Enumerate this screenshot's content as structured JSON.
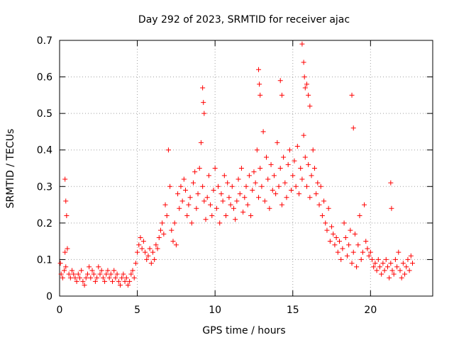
{
  "chart_data": {
    "type": "scatter",
    "title": "Day 292 of 2023, SRMTID for receiver ajac",
    "xlabel": "GPS time / hours",
    "ylabel": "SRMTID / TECUs",
    "xlim": [
      0,
      24
    ],
    "ylim": [
      0,
      0.7
    ],
    "xticks": [
      0,
      5,
      10,
      15,
      20
    ],
    "yticks": [
      0,
      0.1,
      0.2,
      0.3,
      0.4,
      0.5,
      0.6,
      0.7
    ],
    "xtick_labels": [
      "0",
      "5",
      "10",
      "15",
      "20"
    ],
    "ytick_labels": [
      "0",
      "0.1",
      "0.2",
      "0.3",
      "0.4",
      "0.5",
      "0.6",
      "0.7"
    ],
    "grid": true,
    "marker": "+",
    "series_color": "#ff0000",
    "series": [
      {
        "name": "SRMTID",
        "x": [
          0.05,
          0.1,
          0.2,
          0.3,
          0.35,
          0.4,
          0.5,
          0.6,
          0.7,
          0.8,
          0.9,
          1.0,
          1.1,
          1.2,
          1.3,
          1.4,
          1.5,
          1.6,
          1.7,
          1.8,
          1.9,
          2.0,
          2.1,
          2.2,
          2.3,
          2.4,
          2.5,
          2.6,
          2.7,
          2.8,
          2.9,
          3.0,
          3.1,
          3.2,
          3.3,
          3.4,
          3.5,
          3.6,
          3.7,
          3.8,
          3.9,
          4.0,
          4.1,
          4.2,
          4.3,
          4.4,
          4.5,
          4.6,
          4.7,
          4.8,
          4.9,
          5.0,
          5.1,
          5.2,
          5.3,
          5.4,
          5.5,
          5.6,
          5.7,
          5.8,
          5.9,
          6.0,
          6.1,
          6.2,
          6.3,
          6.4,
          6.5,
          6.6,
          6.7,
          6.8,
          6.9,
          7.0,
          7.1,
          7.2,
          7.3,
          7.4,
          7.5,
          7.6,
          7.7,
          7.8,
          7.9,
          8.0,
          8.1,
          8.2,
          8.3,
          8.4,
          8.5,
          8.6,
          8.7,
          8.8,
          8.9,
          9.0,
          9.1,
          9.2,
          9.3,
          9.4,
          9.5,
          9.6,
          9.7,
          9.8,
          9.9,
          10.0,
          10.1,
          10.2,
          10.3,
          10.4,
          10.5,
          10.6,
          10.7,
          10.8,
          10.9,
          11.0,
          11.1,
          11.2,
          11.3,
          11.4,
          11.5,
          11.6,
          11.7,
          11.8,
          11.9,
          12.0,
          12.1,
          12.2,
          12.3,
          12.4,
          12.5,
          12.6,
          12.7,
          12.8,
          12.9,
          13.0,
          13.1,
          13.2,
          13.3,
          13.4,
          13.5,
          13.6,
          13.7,
          13.8,
          13.9,
          14.0,
          14.1,
          14.2,
          14.3,
          14.4,
          14.5,
          14.6,
          14.7,
          14.8,
          14.9,
          15.0,
          15.1,
          15.2,
          15.3,
          15.4,
          15.5,
          15.6,
          15.7,
          15.8,
          15.9,
          16.0,
          16.1,
          16.2,
          16.3,
          16.4,
          16.5,
          16.6,
          16.7,
          16.8,
          16.9,
          17.0,
          17.1,
          17.2,
          17.3,
          17.4,
          17.5,
          17.6,
          17.7,
          17.8,
          17.9,
          18.0,
          18.1,
          18.2,
          18.3,
          18.4,
          18.5,
          18.6,
          18.7,
          18.8,
          18.9,
          19.0,
          19.1,
          19.2,
          19.3,
          19.4,
          19.5,
          19.6,
          19.7,
          19.8,
          19.9,
          20.0,
          20.1,
          20.2,
          20.3,
          20.4,
          20.5,
          20.6,
          20.7,
          20.8,
          20.9,
          21.0,
          21.1,
          21.2,
          21.3,
          21.4,
          21.5,
          21.6,
          21.7,
          21.8,
          21.9,
          22.0,
          22.1,
          22.2,
          22.3,
          22.4,
          22.5,
          22.6,
          22.7,
          9.2,
          9.25,
          9.3,
          12.8,
          12.85,
          12.9,
          14.2,
          14.3,
          15.6,
          15.7,
          15.75,
          15.8,
          15.9,
          16.0,
          16.1,
          18.8,
          18.9,
          21.3,
          21.35,
          0.35,
          0.4,
          0.45
        ],
        "y": [
          0.09,
          0.06,
          0.05,
          0.07,
          0.12,
          0.08,
          0.13,
          0.06,
          0.05,
          0.07,
          0.06,
          0.05,
          0.04,
          0.06,
          0.05,
          0.07,
          0.04,
          0.03,
          0.05,
          0.06,
          0.08,
          0.05,
          0.07,
          0.06,
          0.04,
          0.05,
          0.08,
          0.06,
          0.07,
          0.05,
          0.04,
          0.06,
          0.07,
          0.05,
          0.06,
          0.04,
          0.07,
          0.05,
          0.06,
          0.04,
          0.03,
          0.05,
          0.06,
          0.04,
          0.05,
          0.03,
          0.04,
          0.06,
          0.07,
          0.05,
          0.09,
          0.12,
          0.14,
          0.16,
          0.13,
          0.15,
          0.12,
          0.1,
          0.11,
          0.13,
          0.09,
          0.12,
          0.1,
          0.14,
          0.13,
          0.16,
          0.18,
          0.2,
          0.17,
          0.25,
          0.22,
          0.4,
          0.3,
          0.18,
          0.15,
          0.2,
          0.14,
          0.28,
          0.24,
          0.3,
          0.26,
          0.32,
          0.29,
          0.22,
          0.25,
          0.27,
          0.2,
          0.31,
          0.34,
          0.24,
          0.28,
          0.35,
          0.42,
          0.3,
          0.26,
          0.21,
          0.27,
          0.33,
          0.25,
          0.22,
          0.29,
          0.35,
          0.24,
          0.3,
          0.2,
          0.28,
          0.26,
          0.33,
          0.22,
          0.31,
          0.27,
          0.25,
          0.3,
          0.24,
          0.21,
          0.26,
          0.32,
          0.28,
          0.35,
          0.23,
          0.27,
          0.3,
          0.25,
          0.33,
          0.22,
          0.29,
          0.34,
          0.31,
          0.4,
          0.27,
          0.35,
          0.3,
          0.45,
          0.26,
          0.38,
          0.32,
          0.24,
          0.36,
          0.29,
          0.33,
          0.28,
          0.42,
          0.3,
          0.35,
          0.25,
          0.38,
          0.31,
          0.27,
          0.36,
          0.4,
          0.29,
          0.33,
          0.37,
          0.3,
          0.41,
          0.28,
          0.35,
          0.32,
          0.44,
          0.38,
          0.3,
          0.36,
          0.27,
          0.33,
          0.4,
          0.35,
          0.28,
          0.31,
          0.25,
          0.3,
          0.22,
          0.26,
          0.2,
          0.18,
          0.24,
          0.15,
          0.19,
          0.17,
          0.14,
          0.16,
          0.12,
          0.15,
          0.1,
          0.13,
          0.2,
          0.16,
          0.11,
          0.14,
          0.18,
          0.09,
          0.12,
          0.17,
          0.08,
          0.14,
          0.22,
          0.1,
          0.12,
          0.25,
          0.15,
          0.13,
          0.11,
          0.12,
          0.1,
          0.08,
          0.09,
          0.07,
          0.1,
          0.08,
          0.06,
          0.09,
          0.07,
          0.1,
          0.08,
          0.05,
          0.09,
          0.07,
          0.06,
          0.1,
          0.08,
          0.12,
          0.07,
          0.05,
          0.09,
          0.06,
          0.08,
          0.1,
          0.07,
          0.11,
          0.09,
          0.57,
          0.53,
          0.5,
          0.62,
          0.58,
          0.55,
          0.59,
          0.55,
          0.69,
          0.64,
          0.6,
          0.57,
          0.58,
          0.55,
          0.52,
          0.55,
          0.46,
          0.31,
          0.24,
          0.32,
          0.26,
          0.22
        ]
      }
    ]
  }
}
